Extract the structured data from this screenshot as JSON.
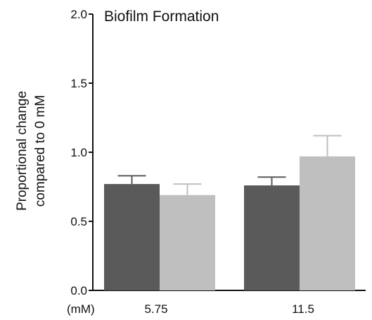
{
  "chart_data": {
    "type": "bar",
    "title": "Biofilm Formation",
    "ylabel_lines": [
      "Proportional change",
      "compared to 0 mM"
    ],
    "xunit": "(mM)",
    "categories": [
      "5.75",
      "11.5"
    ],
    "ylim": [
      0,
      2.0
    ],
    "yticks": [
      0.0,
      0.5,
      1.0,
      1.5,
      2.0
    ],
    "ytick_labels": [
      "0.0",
      "0.5",
      "1.0",
      "1.5",
      "2.0"
    ],
    "grid": false,
    "series": [
      {
        "values": [
          0.77,
          0.76
        ],
        "errors": [
          0.06,
          0.06
        ],
        "color": "#5a5a5a"
      },
      {
        "values": [
          0.69,
          0.97
        ],
        "errors": [
          0.08,
          0.15
        ],
        "color": "#bfbfbf"
      }
    ]
  }
}
